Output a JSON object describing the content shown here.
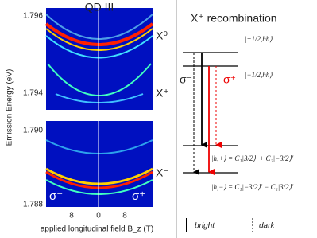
{
  "left_panel": {
    "title": "QD III",
    "y_label": "Emission Energy (eV)",
    "x_label": "applied longitudinal field B_z (T)",
    "top_yticks": [
      "1.796",
      "1.794"
    ],
    "bottom_yticks": [
      "1.790",
      "1.788"
    ],
    "xticks": [
      "8",
      "0",
      "8"
    ],
    "peak_labels": [
      "X⁰",
      "X⁺",
      "X⁻"
    ],
    "polarization_labels": [
      "σ⁻",
      "σ⁺"
    ]
  },
  "right_panel": {
    "title": "X⁺ recombination",
    "states": [
      "|+1/2,hh⟩",
      "|−1/2,hh⟩",
      "|h,+⟩ = C₁|3/2⟩' + C₂|−3/2⟩'",
      "|h,−⟩ = C₁|−3/2⟩' − C₂|3/2⟩'"
    ],
    "transitions": [
      "σ⁻",
      "σ⁺"
    ],
    "legend": [
      "bright",
      "dark"
    ]
  }
}
